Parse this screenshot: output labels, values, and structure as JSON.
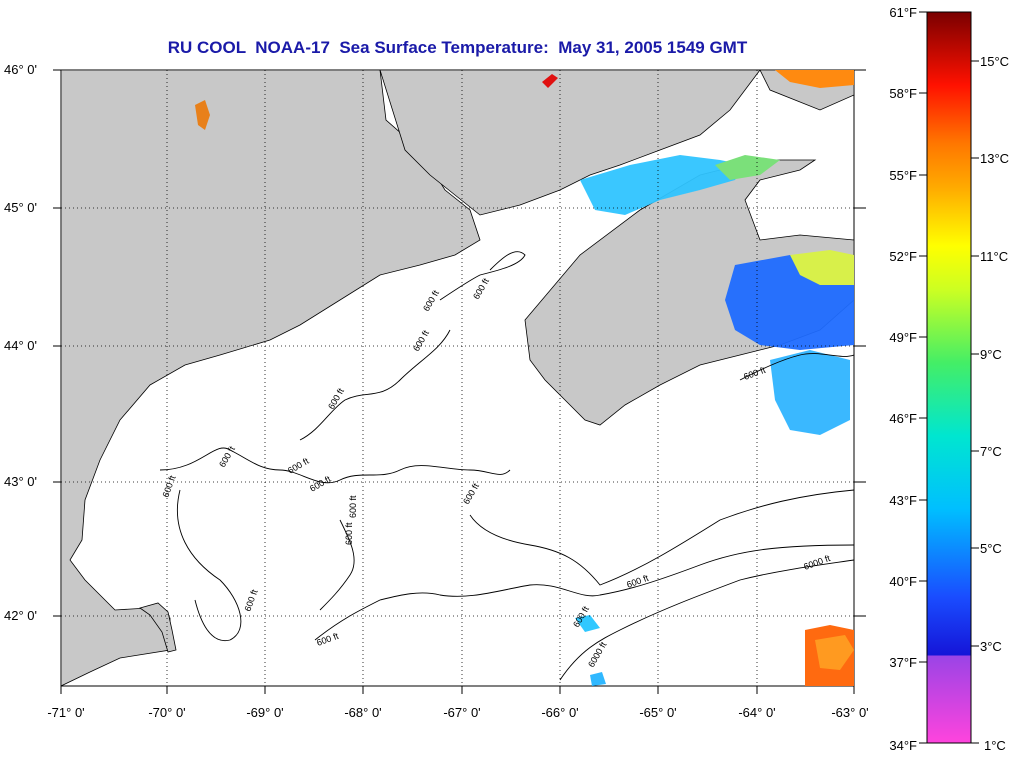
{
  "map": {
    "title": "RU COOL  NOAA-17  Sea Surface Temperature:  May 31, 2005 1549 GMT",
    "lat_labels": [
      "46° 0'",
      "45° 0'",
      "44° 0'",
      "43° 0'",
      "42° 0'"
    ],
    "lon_labels": [
      "-71° 0'",
      "-70° 0'",
      "-69° 0'",
      "-68° 0'",
      "-67° 0'",
      "-66° 0'",
      "-65° 0'",
      "-64° 0'",
      "-63° 0'"
    ],
    "contour_label": "600 ft",
    "contour_label_deep": "6000 ft",
    "colors": {
      "land": "#c8c8c8",
      "water": "#ffffff",
      "title": "#1a1aa8"
    }
  },
  "colorbar": {
    "fahrenheit_labels": [
      "61°F",
      "58°F",
      "55°F",
      "52°F",
      "49°F",
      "46°F",
      "43°F",
      "40°F",
      "37°F",
      "34°F"
    ],
    "celsius_labels": [
      "15°C",
      "13°C",
      "11°C",
      "9°C",
      "7°C",
      "5°C",
      "3°C",
      "1°C"
    ]
  }
}
